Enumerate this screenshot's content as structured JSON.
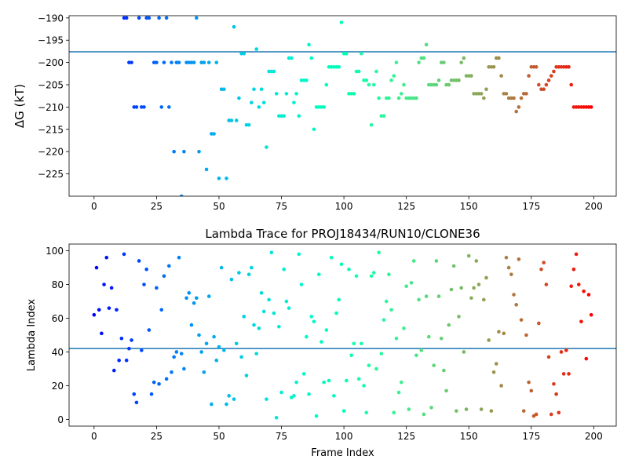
{
  "chart_data": [
    {
      "type": "scatter",
      "title": "",
      "xlabel": "",
      "ylabel": "ΔG (kT)",
      "xlim": [
        -10,
        209
      ],
      "ylim": [
        -230,
        -189.5
      ],
      "xticks": [
        0,
        25,
        50,
        75,
        100,
        125,
        150,
        175,
        200
      ],
      "yticks": [
        -225,
        -220,
        -215,
        -210,
        -205,
        -200,
        -195,
        -190
      ],
      "hline": -197.6,
      "hline_color": "#1f77b4",
      "colormap": "rainbow",
      "grid": false,
      "x": [
        12,
        13,
        14,
        15,
        16,
        17,
        18,
        19,
        20,
        21,
        22,
        24,
        25,
        26,
        27,
        28,
        29,
        30,
        31,
        32,
        33,
        34,
        35,
        36,
        37,
        38,
        39,
        40,
        41,
        42,
        43,
        44,
        45,
        46,
        47,
        48,
        49,
        50,
        51,
        52,
        53,
        54,
        55,
        56,
        57,
        58,
        59,
        60,
        61,
        62,
        63,
        64,
        65,
        66,
        67,
        68,
        69,
        70,
        71,
        72,
        73,
        74,
        75,
        76,
        77,
        78,
        79,
        80,
        81,
        82,
        83,
        84,
        85,
        86,
        87,
        88,
        89,
        90,
        91,
        92,
        93,
        94,
        95,
        96,
        97,
        98,
        99,
        100,
        101,
        102,
        103,
        104,
        105,
        106,
        107,
        108,
        109,
        110,
        111,
        112,
        113,
        114,
        115,
        116,
        117,
        118,
        119,
        120,
        121,
        122,
        123,
        124,
        125,
        126,
        127,
        128,
        129,
        130,
        131,
        132,
        133,
        134,
        135,
        136,
        137,
        138,
        139,
        140,
        141,
        142,
        143,
        144,
        145,
        146,
        147,
        148,
        149,
        150,
        151,
        152,
        153,
        154,
        155,
        156,
        157,
        158,
        159,
        160,
        161,
        162,
        163,
        164,
        165,
        166,
        167,
        168,
        169,
        170,
        171,
        172,
        173,
        174,
        175,
        176,
        177,
        178,
        179,
        180,
        181,
        182,
        183,
        184,
        185,
        186,
        187,
        188,
        189,
        190,
        191,
        192,
        193,
        194,
        195,
        196,
        197,
        198,
        199
      ],
      "y": [
        -190,
        -190,
        -200,
        -200,
        -210,
        -210,
        -190,
        -210,
        -210,
        -190,
        -190,
        -200,
        -200,
        -190,
        -210,
        -200,
        -190,
        -210,
        -200,
        -220,
        -200,
        -200,
        -230,
        -220,
        -200,
        -200,
        -200,
        -200,
        -190,
        -220,
        -200,
        -200,
        -224,
        -200,
        -216,
        -216,
        -200,
        -226,
        -206,
        -206,
        -226,
        -213,
        -213,
        -192,
        -213,
        -208,
        -198,
        -198,
        -214,
        -214,
        -209,
        -206,
        -197,
        -210,
        -206,
        -209,
        -219,
        -202,
        -202,
        -202,
        -207,
        -212,
        -212,
        -212,
        -207,
        -199,
        -199,
        -209,
        -207,
        -212,
        -204,
        -204,
        -204,
        -196,
        -199,
        -215,
        -210,
        -210,
        -210,
        -210,
        -205,
        -201,
        -201,
        -201,
        -201,
        -201,
        -191,
        -198,
        -198,
        -207,
        -207,
        -207,
        -202,
        -202,
        -198,
        -204,
        -204,
        -205,
        -214,
        -205,
        -202,
        -208,
        -212,
        -212,
        -208,
        -208,
        -204,
        -203,
        -200,
        -208,
        -207,
        -205,
        -208,
        -208,
        -208,
        -208,
        -208,
        -200,
        -199,
        -199,
        -196,
        -205,
        -205,
        -205,
        -205,
        -204,
        -200,
        -200,
        -205,
        -205,
        -204,
        -204,
        -204,
        -204,
        -200,
        -199,
        -203,
        -203,
        -203,
        -207,
        -207,
        -207,
        -207,
        -208,
        -206,
        -201,
        -201,
        -201,
        -199,
        -199,
        -203,
        -207,
        -207,
        -208,
        -208,
        -208,
        -211,
        -210,
        -208,
        -207,
        -207,
        -203,
        -201,
        -201,
        -201,
        -205,
        -206,
        -206,
        -205,
        -204,
        -203,
        -202,
        -201,
        -201,
        -201,
        -201,
        -201,
        -201,
        -205,
        -210,
        -210,
        -210,
        -210,
        -210,
        -210,
        -210,
        -210
      ]
    },
    {
      "type": "scatter",
      "title": "Lambda Trace for PROJ18434/RUN10/CLONE36",
      "xlabel": "Frame Index",
      "ylabel": "Lambda Index",
      "xlim": [
        -10,
        209
      ],
      "ylim": [
        -4,
        104
      ],
      "xticks": [
        0,
        25,
        50,
        75,
        100,
        125,
        150,
        175,
        200
      ],
      "yticks": [
        0,
        20,
        40,
        60,
        80,
        100
      ],
      "hline": 42,
      "hline_color": "#1f77b4",
      "colormap": "rainbow",
      "grid": false,
      "x": [
        0,
        1,
        2,
        3,
        4,
        5,
        6,
        7,
        8,
        9,
        10,
        11,
        12,
        13,
        14,
        15,
        16,
        17,
        18,
        19,
        20,
        21,
        22,
        23,
        24,
        25,
        26,
        27,
        28,
        29,
        30,
        31,
        32,
        33,
        34,
        35,
        36,
        37,
        38,
        39,
        40,
        41,
        42,
        43,
        44,
        45,
        46,
        47,
        48,
        49,
        50,
        51,
        52,
        53,
        54,
        55,
        56,
        57,
        58,
        59,
        60,
        61,
        62,
        63,
        64,
        65,
        66,
        67,
        68,
        69,
        70,
        71,
        72,
        73,
        74,
        75,
        76,
        77,
        78,
        79,
        80,
        81,
        82,
        83,
        84,
        85,
        86,
        87,
        88,
        89,
        90,
        91,
        92,
        93,
        94,
        95,
        96,
        97,
        98,
        99,
        100,
        101,
        102,
        103,
        104,
        105,
        106,
        107,
        108,
        109,
        110,
        111,
        112,
        113,
        114,
        115,
        116,
        117,
        118,
        119,
        120,
        121,
        122,
        123,
        124,
        125,
        126,
        127,
        128,
        129,
        130,
        131,
        132,
        133,
        134,
        135,
        136,
        137,
        138,
        139,
        140,
        141,
        142,
        143,
        144,
        145,
        146,
        147,
        148,
        149,
        150,
        151,
        152,
        153,
        154,
        155,
        156,
        157,
        158,
        159,
        160,
        161,
        162,
        163,
        164,
        165,
        166,
        167,
        168,
        169,
        170,
        171,
        172,
        173,
        174,
        175,
        176,
        177,
        178,
        179,
        180,
        181,
        182,
        183,
        184,
        185,
        186,
        187,
        188,
        189,
        190,
        191,
        192,
        193,
        194,
        195,
        196,
        197,
        198,
        199
      ],
      "y": [
        62,
        90,
        65,
        51,
        80,
        96,
        66,
        78,
        29,
        65,
        35,
        48,
        98,
        35,
        42,
        47,
        15,
        10,
        94,
        41,
        80,
        89,
        53,
        15,
        22,
        78,
        21,
        65,
        85,
        24,
        91,
        28,
        37,
        40,
        96,
        39,
        30,
        72,
        75,
        56,
        69,
        72,
        50,
        40,
        28,
        45,
        73,
        9,
        49,
        35,
        43,
        90,
        41,
        9,
        14,
        83,
        12,
        45,
        87,
        37,
        61,
        26,
        86,
        90,
        56,
        39,
        54,
        75,
        64,
        12,
        71,
        99,
        63,
        1,
        55,
        16,
        89,
        70,
        66,
        13,
        14,
        22,
        98,
        80,
        27,
        49,
        15,
        61,
        58,
        2,
        86,
        46,
        22,
        53,
        23,
        96,
        14,
        63,
        71,
        92,
        5,
        23,
        89,
        38,
        45,
        85,
        24,
        45,
        20,
        4,
        32,
        85,
        87,
        30,
        99,
        39,
        59,
        70,
        86,
        65,
        4,
        48,
        16,
        22,
        54,
        79,
        6,
        81,
        94,
        38,
        71,
        41,
        3,
        73,
        49,
        7,
        32,
        94,
        73,
        48,
        29,
        17,
        56,
        77,
        91,
        5,
        61,
        78,
        40,
        6,
        97,
        72,
        78,
        94,
        80,
        6,
        71,
        84,
        47,
        5,
        28,
        33,
        52,
        20,
        51,
        96,
        90,
        86,
        74,
        68,
        95,
        59,
        5,
        50,
        22,
        17,
        2,
        3,
        57,
        89,
        93,
        80,
        37,
        3,
        21,
        15,
        4,
        40,
        27,
        41,
        27,
        79,
        89,
        98,
        80,
        58,
        76,
        36,
        74,
        62
      ]
    }
  ]
}
